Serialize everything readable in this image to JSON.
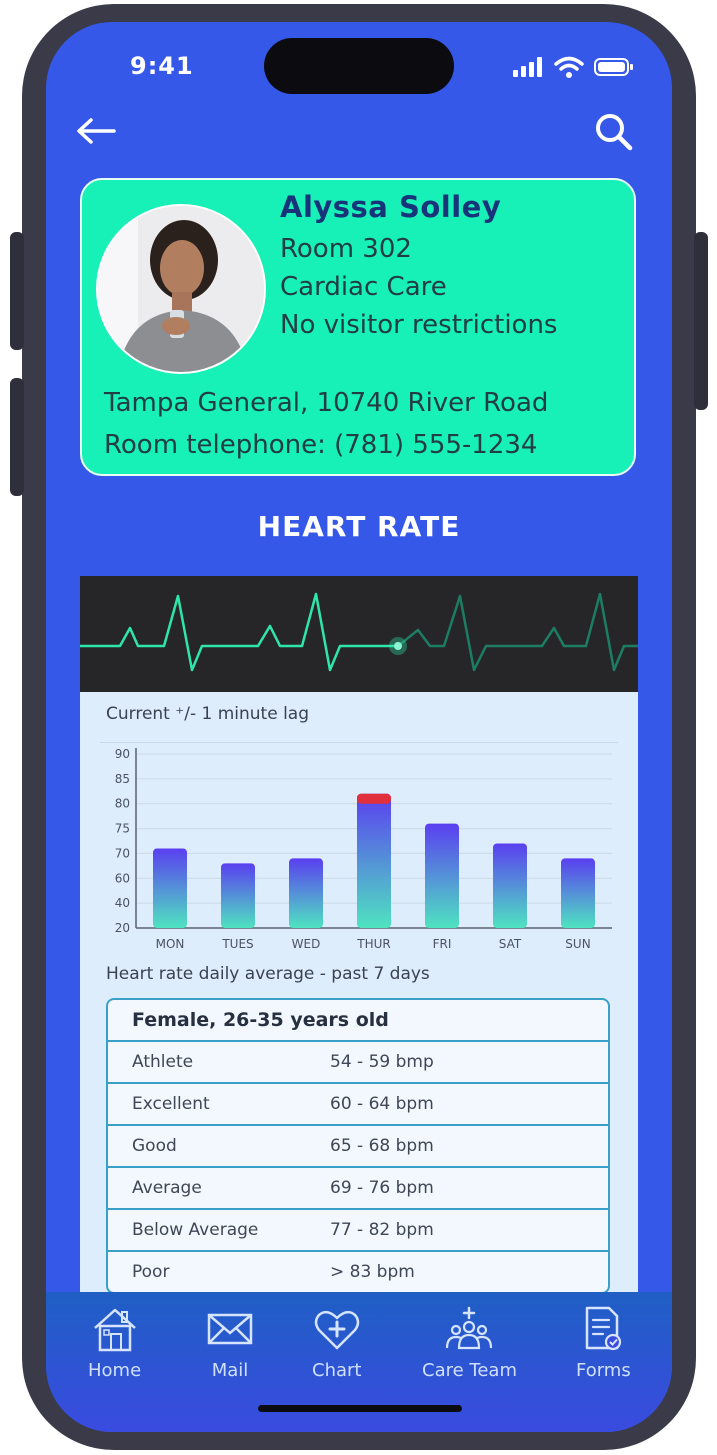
{
  "status_bar": {
    "time": "9:41"
  },
  "nav": {
    "back_icon": "arrow-left-icon",
    "search_icon": "search-icon"
  },
  "patient": {
    "name": "Alyssa Solley",
    "room": "Room 302",
    "unit": "Cardiac Care",
    "visitors": "No visitor restrictions",
    "address": "Tampa General, 10740 River Road",
    "phone": "Room telephone: (781) 555-1234"
  },
  "heart_rate": {
    "title": "HEART RATE",
    "lag_label": "Current ⁺/- 1 minute lag",
    "caption": "Heart rate daily average - past 7 days"
  },
  "chart_data": {
    "type": "bar",
    "categories": [
      "MON",
      "TUES",
      "WED",
      "THUR",
      "FRI",
      "SAT",
      "SUN"
    ],
    "values": [
      71,
      66,
      68,
      82,
      76,
      72,
      68
    ],
    "yticks": [
      20,
      40,
      60,
      70,
      75,
      80,
      85,
      90
    ],
    "ylim": [
      20,
      90
    ],
    "highlight": {
      "category": "THUR",
      "above": 80,
      "color": "#e0303e"
    },
    "colors": {
      "top": "#5a3ff0",
      "bottom": "#4fe3c0"
    }
  },
  "ranges": {
    "header": "Female,  26-35 years old",
    "rows": [
      {
        "category": "Athlete",
        "range": "54 - 59  bmp"
      },
      {
        "category": "Excellent",
        "range": "60 - 64  bpm"
      },
      {
        "category": "Good",
        "range": "65 - 68  bpm"
      },
      {
        "category": "Average",
        "range": "69 - 76  bpm"
      },
      {
        "category": "Below Average",
        "range": "77 - 82  bpm"
      },
      {
        "category": "Poor",
        "range": "> 83    bpm"
      }
    ]
  },
  "tabs": [
    {
      "label": "Home",
      "icon": "house-icon"
    },
    {
      "label": "Mail",
      "icon": "envelope-icon"
    },
    {
      "label": "Chart",
      "icon": "heart-plus-icon"
    },
    {
      "label": "Care Team",
      "icon": "team-icon"
    },
    {
      "label": "Forms",
      "icon": "form-icon"
    }
  ],
  "colors": {
    "screen_bg": "#3558e8",
    "card_bg": "#17f0b6",
    "ekg_line": "#2ee6a8"
  }
}
